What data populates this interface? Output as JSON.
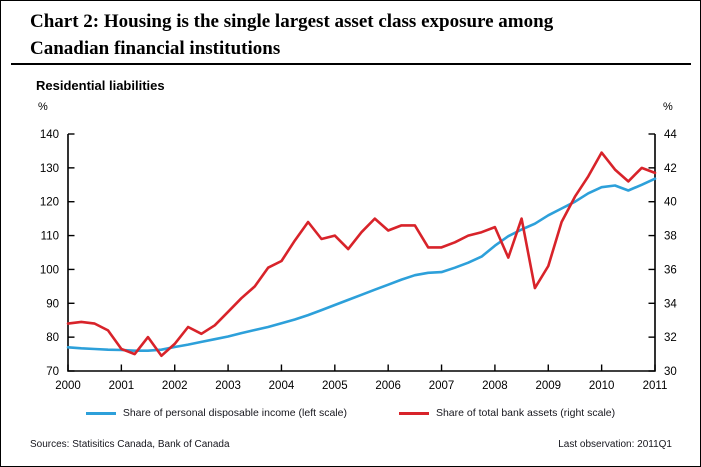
{
  "header": {
    "title_line1": "Chart 2: Housing is the single largest asset class exposure among",
    "title_line2": "Canadian financial institutions"
  },
  "panel": {
    "title": "Residential liabilities"
  },
  "footer": {
    "sources": "Sources: Statisitics Canada, Bank of Canada",
    "last_observation": "Last observation: 2011Q1"
  },
  "chart_data": {
    "type": "line",
    "title": "Residential liabilities",
    "frequency": "quarterly",
    "x_start": "2000Q1",
    "x_end": "2011Q1",
    "x_tick_labels": [
      "2000",
      "2001",
      "2002",
      "2003",
      "2004",
      "2005",
      "2006",
      "2007",
      "2008",
      "2009",
      "2010",
      "2011"
    ],
    "left_axis": {
      "unit": "%",
      "min": 70,
      "max": 140,
      "step": 10
    },
    "right_axis": {
      "unit": "%",
      "min": 30,
      "max": 44,
      "step": 2
    },
    "grid": false,
    "legend_position": "bottom",
    "axis_color": "#000000",
    "series": [
      {
        "name": "Share of personal disposable income (left scale)",
        "axis": "left",
        "color": "#2da0da",
        "values": [
          77.0,
          76.7,
          76.5,
          76.3,
          76.2,
          76.0,
          76.0,
          76.3,
          77.1,
          77.8,
          78.6,
          79.4,
          80.2,
          81.2,
          82.1,
          83.0,
          84.1,
          85.2,
          86.5,
          88.0,
          89.5,
          91.0,
          92.5,
          94.0,
          95.5,
          97.0,
          98.3,
          99.0,
          99.2,
          100.5,
          102.0,
          103.8,
          107.0,
          109.8,
          111.8,
          113.5,
          116.0,
          118.0,
          120.0,
          122.5,
          124.3,
          124.8,
          123.3,
          125.0,
          126.8
        ]
      },
      {
        "name": "Share of total bank assets (right scale)",
        "axis": "right",
        "color": "#d8232a",
        "values": [
          32.8,
          32.9,
          32.8,
          32.4,
          31.3,
          31.0,
          32.0,
          30.9,
          31.6,
          32.6,
          32.2,
          32.7,
          33.5,
          34.3,
          35.0,
          36.1,
          36.5,
          37.7,
          38.8,
          37.8,
          38.0,
          37.2,
          38.2,
          39.0,
          38.3,
          38.6,
          38.6,
          37.3,
          37.3,
          37.6,
          38.0,
          38.2,
          38.5,
          36.7,
          39.0,
          34.9,
          36.2,
          38.8,
          40.3,
          41.5,
          42.9,
          41.9,
          41.2,
          42.0,
          41.7
        ]
      }
    ]
  }
}
